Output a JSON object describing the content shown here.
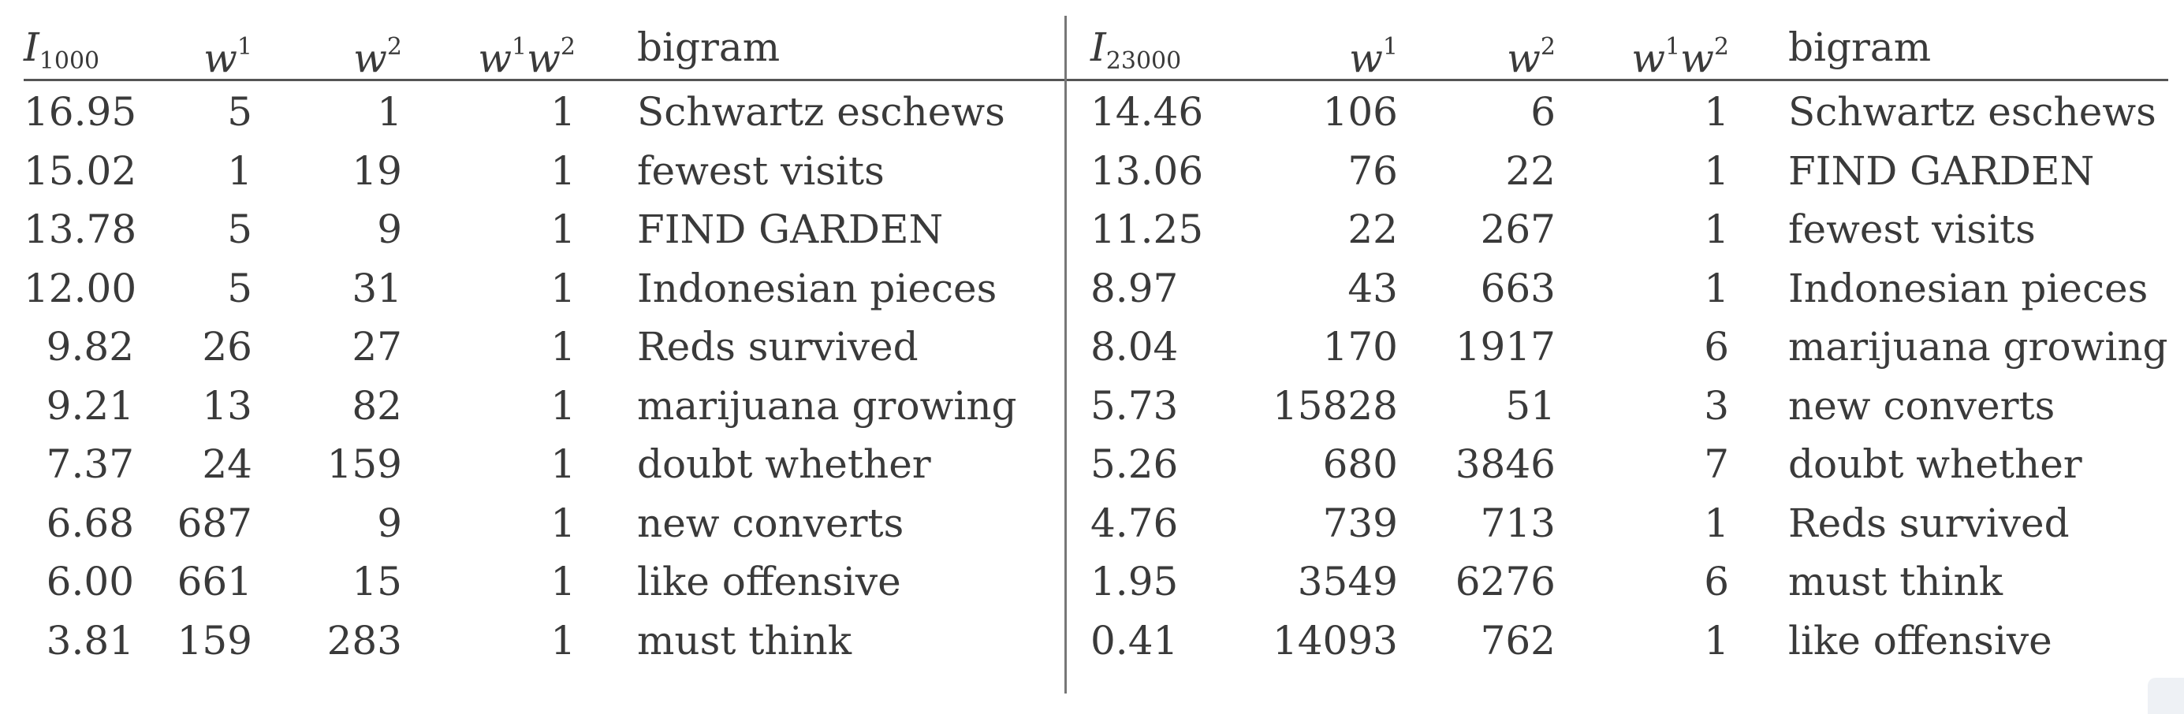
{
  "left_table": {
    "headers": {
      "col0_main": "I",
      "col0_sub": "1000",
      "col1_main": "w",
      "col1_sup": "1",
      "col2_main": "w",
      "col2_sup": "2",
      "col3_main_a": "w",
      "col3_sup_a": "1",
      "col3_main_b": "w",
      "col3_sup_b": "2",
      "col4": "bigram"
    },
    "rows": [
      {
        "i": "16.95",
        "w1": "5",
        "w2": "1",
        "w1w2": "1",
        "bigram": "Schwartz eschews"
      },
      {
        "i": "15.02",
        "w1": "1",
        "w2": "19",
        "w1w2": "1",
        "bigram": "fewest visits"
      },
      {
        "i": "13.78",
        "w1": "5",
        "w2": "9",
        "w1w2": "1",
        "bigram": "FIND GARDEN"
      },
      {
        "i": "12.00",
        "w1": "5",
        "w2": "31",
        "w1w2": "1",
        "bigram": "Indonesian pieces"
      },
      {
        "i": "9.82",
        "w1": "26",
        "w2": "27",
        "w1w2": "1",
        "bigram": "Reds survived"
      },
      {
        "i": "9.21",
        "w1": "13",
        "w2": "82",
        "w1w2": "1",
        "bigram": "marijuana growing"
      },
      {
        "i": "7.37",
        "w1": "24",
        "w2": "159",
        "w1w2": "1",
        "bigram": "doubt whether"
      },
      {
        "i": "6.68",
        "w1": "687",
        "w2": "9",
        "w1w2": "1",
        "bigram": "new converts"
      },
      {
        "i": "6.00",
        "w1": "661",
        "w2": "15",
        "w1w2": "1",
        "bigram": "like offensive"
      },
      {
        "i": "3.81",
        "w1": "159",
        "w2": "283",
        "w1w2": "1",
        "bigram": "must think"
      }
    ]
  },
  "right_table": {
    "headers": {
      "col0_main": "I",
      "col0_sub": "23000",
      "col1_main": "w",
      "col1_sup": "1",
      "col2_main": "w",
      "col2_sup": "2",
      "col3_main_a": "w",
      "col3_sup_a": "1",
      "col3_main_b": "w",
      "col3_sup_b": "2",
      "col4": "bigram"
    },
    "rows": [
      {
        "i": "14.46",
        "w1": "106",
        "w2": "6",
        "w1w2": "1",
        "bigram": "Schwartz eschews"
      },
      {
        "i": "13.06",
        "w1": "76",
        "w2": "22",
        "w1w2": "1",
        "bigram": "FIND GARDEN"
      },
      {
        "i": "11.25",
        "w1": "22",
        "w2": "267",
        "w1w2": "1",
        "bigram": "fewest visits"
      },
      {
        "i": "8.97",
        "w1": "43",
        "w2": "663",
        "w1w2": "1",
        "bigram": "Indonesian pieces"
      },
      {
        "i": "8.04",
        "w1": "170",
        "w2": "1917",
        "w1w2": "6",
        "bigram": "marijuana growing"
      },
      {
        "i": "5.73",
        "w1": "15828",
        "w2": "51",
        "w1w2": "3",
        "bigram": "new converts"
      },
      {
        "i": "5.26",
        "w1": "680",
        "w2": "3846",
        "w1w2": "7",
        "bigram": "doubt whether"
      },
      {
        "i": "4.76",
        "w1": "739",
        "w2": "713",
        "w1w2": "1",
        "bigram": "Reds survived"
      },
      {
        "i": "1.95",
        "w1": "3549",
        "w2": "6276",
        "w1w2": "6",
        "bigram": "must think"
      },
      {
        "i": "0.41",
        "w1": "14093",
        "w2": "762",
        "w1w2": "1",
        "bigram": "like offensive"
      }
    ]
  }
}
